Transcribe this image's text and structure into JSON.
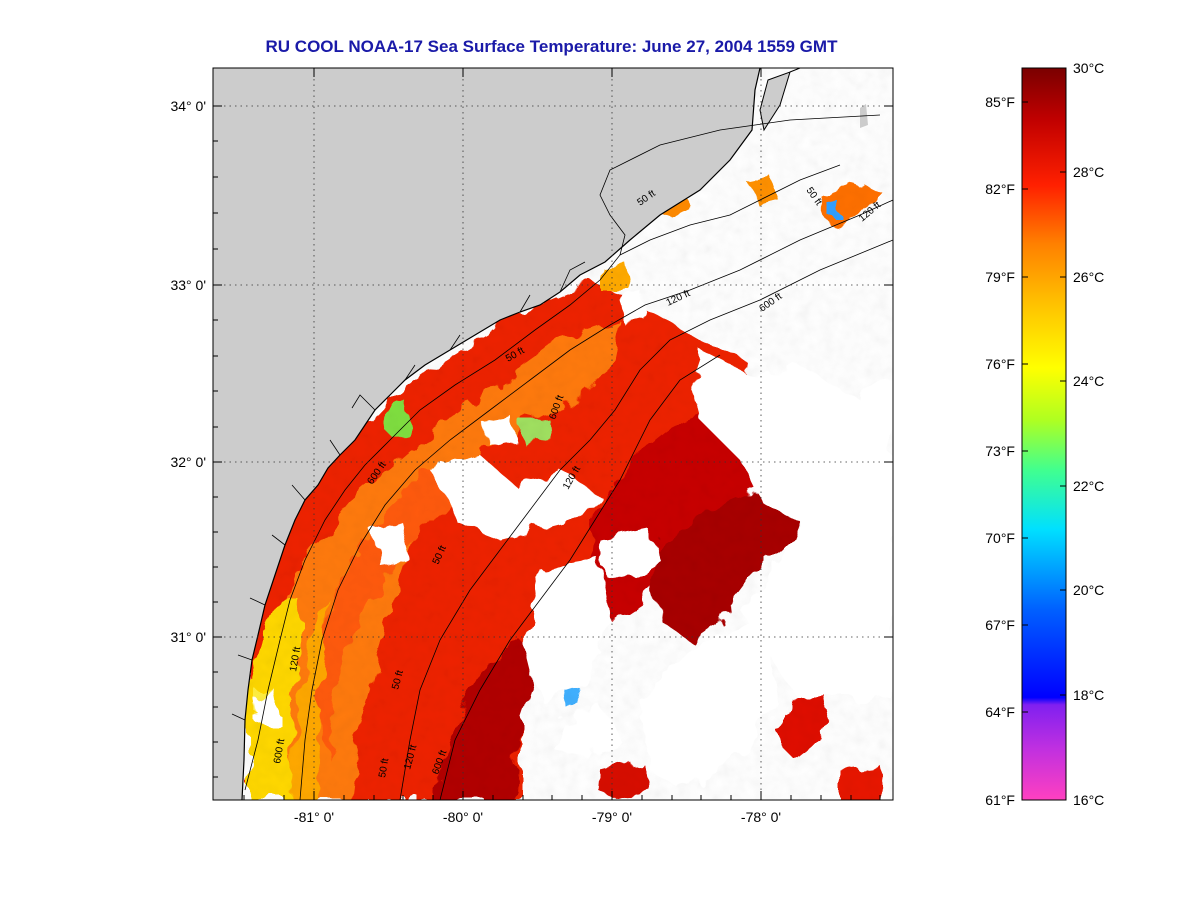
{
  "title": "RU COOL  NOAA-17  Sea Surface Temperature:  June 27, 2004 1559 GMT",
  "map": {
    "lat_labels": [
      "34° 0'",
      "33° 0'",
      "32° 0'",
      "31° 0'"
    ],
    "lon_labels": [
      "-81° 0'",
      "-80° 0'",
      "-79° 0'",
      "-78° 0'"
    ],
    "contour_labels": [
      "50 ft",
      "120 ft",
      "600 ft",
      "50 ft",
      "120 ft",
      "600 ft",
      "50 ft",
      "120 ft",
      "600 ft",
      "50 ft",
      "120 ft",
      "600 ft",
      "50 ft",
      "50 ft",
      "120 ft",
      "600 ft"
    ],
    "land_color": "#cccccc",
    "cloud_color": "#ffffff",
    "coastline_color": "#000000",
    "contour_color": "#000000"
  },
  "colorbar": {
    "celsius_labels": [
      "30°C",
      "28°C",
      "26°C",
      "24°C",
      "22°C",
      "20°C",
      "18°C",
      "16°C"
    ],
    "fahrenheit_labels": [
      "85°F",
      "82°F",
      "79°F",
      "76°F",
      "73°F",
      "70°F",
      "67°F",
      "64°F",
      "61°F"
    ],
    "celsius_range": [
      16,
      30
    ],
    "colors": [
      "#ff40c0",
      "#a020f0",
      "#0000ff",
      "#0080ff",
      "#00e0ff",
      "#40ff80",
      "#d0ff20",
      "#ffff00",
      "#ffc000",
      "#ff8000",
      "#ff3000",
      "#dd0000",
      "#9a0000",
      "#700000"
    ]
  }
}
